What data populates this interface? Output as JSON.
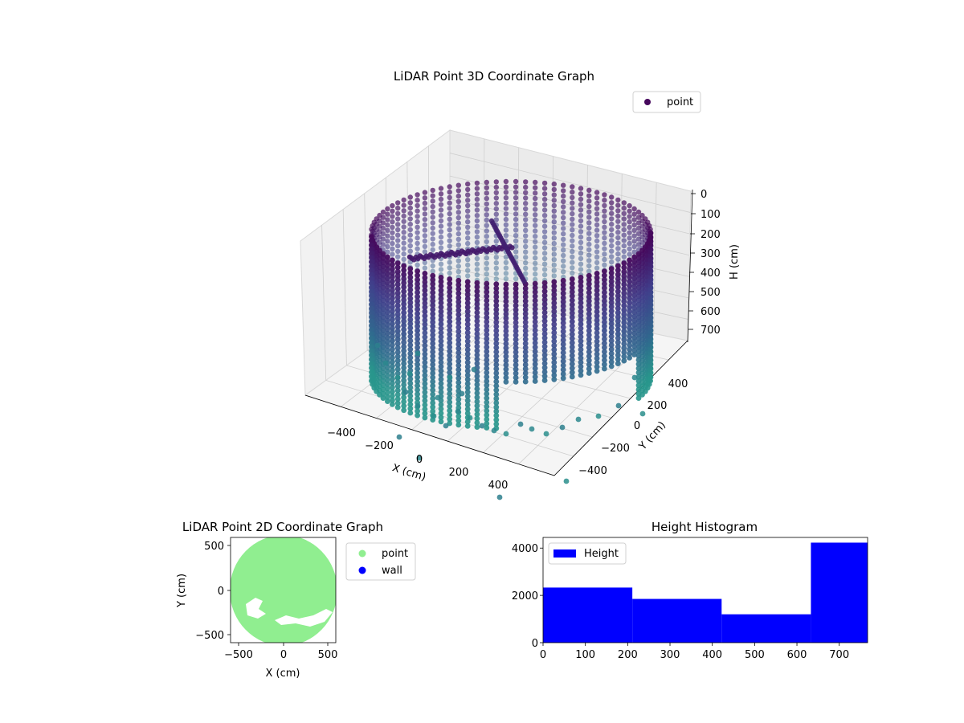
{
  "colors": {
    "viridis_top": "#46085c",
    "viridis_mid": "#31688e",
    "viridis_low": "#3fbc73",
    "point_2d": "#90ee90",
    "wall_2d": "#0000ff",
    "hist_bar": "#0000ff"
  },
  "chart_data": [
    {
      "type": "scatter",
      "projection": "3d",
      "title": "LiDAR Point 3D Coordinate Graph",
      "xlabel": "X (cm)",
      "ylabel": "Y (cm)",
      "zlabel": "H (cm)",
      "x_ticks": [
        "−400",
        "−200",
        "0",
        "200",
        "400"
      ],
      "y_ticks": [
        "400",
        "200",
        "0",
        "−200",
        "−400"
      ],
      "z_ticks": [
        "0",
        "100",
        "200",
        "300",
        "400",
        "500",
        "600",
        "700"
      ],
      "legend": [
        "point"
      ],
      "legend_position": "top-right",
      "grid": true,
      "z_inverted": true,
      "colormap": "viridis"
    },
    {
      "type": "scatter",
      "title": "LiDAR Point 2D Coordinate Graph",
      "xlabel": "X (cm)",
      "ylabel": "Y (cm)",
      "x_ticks": [
        "−500",
        "0",
        "500"
      ],
      "y_ticks": [
        "500",
        "0",
        "−500"
      ],
      "xlim": [
        -580,
        580
      ],
      "ylim": [
        -580,
        580
      ],
      "series": [
        {
          "name": "point",
          "color": "#90ee90"
        },
        {
          "name": "wall",
          "color": "#0000ff"
        }
      ],
      "legend_position": "outside-right"
    },
    {
      "type": "bar",
      "title": "Height Histogram",
      "legend": [
        "Height"
      ],
      "legend_position": "top-left",
      "bins": [
        {
          "start": 0,
          "end": 211,
          "count": 2330
        },
        {
          "start": 211,
          "end": 422,
          "count": 1850
        },
        {
          "start": 422,
          "end": 633,
          "count": 1200
        },
        {
          "start": 633,
          "end": 767,
          "count": 4230
        }
      ],
      "xlim": [
        0,
        767
      ],
      "ylim": [
        0,
        4450
      ],
      "x_ticks": [
        "0",
        "100",
        "200",
        "300",
        "400",
        "500",
        "600",
        "700"
      ],
      "y_ticks": [
        "0",
        "2000",
        "4000"
      ],
      "grid": false
    }
  ]
}
